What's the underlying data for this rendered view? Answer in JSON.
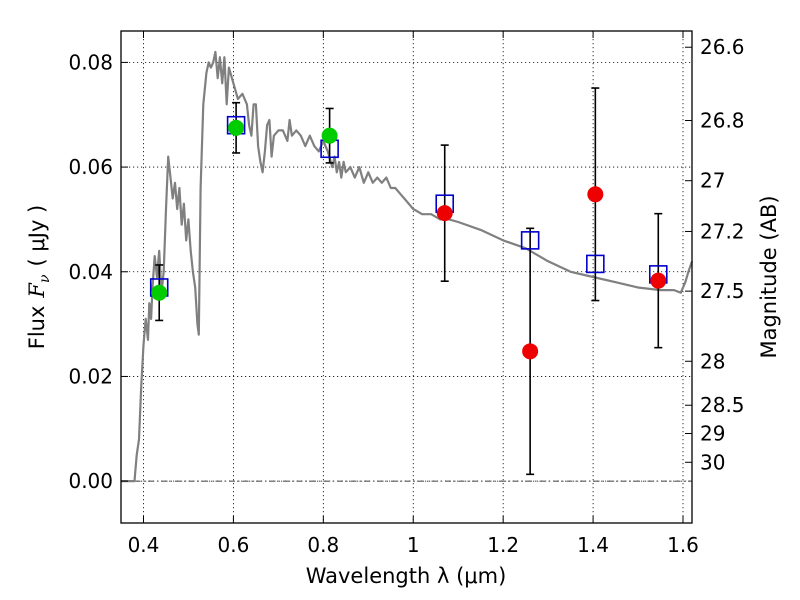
{
  "chart_data": {
    "type": "scatter",
    "xlabel": "Wavelength  λ (μm)",
    "ylabel": "Flux  F_ν  ( μJy )",
    "ylabel_parts": {
      "prefix": "Flux",
      "symbol": "F",
      "subscript": "ν",
      "unit": "( μJy )"
    },
    "y2label": "Magnitude (AB)",
    "xlim": [
      0.35,
      1.62
    ],
    "ylim": [
      -0.008,
      0.086
    ],
    "grid": true,
    "xticks": [
      0.4,
      0.6,
      0.8,
      1.0,
      1.2,
      1.4,
      1.6
    ],
    "xtick_labels": [
      "0.4",
      "0.6",
      "0.8",
      "1",
      "1.2",
      "1.4",
      "1.6"
    ],
    "yticks": [
      0.0,
      0.02,
      0.04,
      0.06,
      0.08
    ],
    "ytick_labels": [
      "0.00",
      "0.02",
      "0.04",
      "0.06",
      "0.08"
    ],
    "mag_ticks": [
      {
        "label": "26.6",
        "flux": 0.0829
      },
      {
        "label": "26.8",
        "flux": 0.0689
      },
      {
        "label": "27",
        "flux": 0.0574
      },
      {
        "label": "27.2",
        "flux": 0.0477
      },
      {
        "label": "27.5",
        "flux": 0.0363
      },
      {
        "label": "28",
        "flux": 0.0229
      },
      {
        "label": "28.5",
        "flux": 0.0145
      },
      {
        "label": "29",
        "flux": 0.0091
      },
      {
        "label": "30",
        "flux": 0.0036
      }
    ],
    "series": [
      {
        "name": "model-spectrum",
        "kind": "line",
        "color": "#808080",
        "points": [
          [
            0.35,
            0.0
          ],
          [
            0.38,
            0.0
          ],
          [
            0.385,
            0.005
          ],
          [
            0.39,
            0.008
          ],
          [
            0.395,
            0.018
          ],
          [
            0.4,
            0.026
          ],
          [
            0.405,
            0.031
          ],
          [
            0.41,
            0.027
          ],
          [
            0.413,
            0.034
          ],
          [
            0.417,
            0.031
          ],
          [
            0.42,
            0.037
          ],
          [
            0.425,
            0.043
          ],
          [
            0.43,
            0.039
          ],
          [
            0.435,
            0.044
          ],
          [
            0.44,
            0.036
          ],
          [
            0.445,
            0.04
          ],
          [
            0.45,
            0.052
          ],
          [
            0.455,
            0.062
          ],
          [
            0.46,
            0.058
          ],
          [
            0.465,
            0.054
          ],
          [
            0.47,
            0.057
          ],
          [
            0.475,
            0.052
          ],
          [
            0.48,
            0.056
          ],
          [
            0.485,
            0.049
          ],
          [
            0.49,
            0.053
          ],
          [
            0.495,
            0.046
          ],
          [
            0.5,
            0.05
          ],
          [
            0.505,
            0.044
          ],
          [
            0.51,
            0.04
          ],
          [
            0.515,
            0.037
          ],
          [
            0.52,
            0.03
          ],
          [
            0.523,
            0.028
          ],
          [
            0.527,
            0.056
          ],
          [
            0.533,
            0.072
          ],
          [
            0.54,
            0.078
          ],
          [
            0.545,
            0.08
          ],
          [
            0.55,
            0.079
          ],
          [
            0.555,
            0.08
          ],
          [
            0.56,
            0.082
          ],
          [
            0.565,
            0.077
          ],
          [
            0.57,
            0.081
          ],
          [
            0.575,
            0.076
          ],
          [
            0.58,
            0.081
          ],
          [
            0.585,
            0.072
          ],
          [
            0.59,
            0.079
          ],
          [
            0.6,
            0.076
          ],
          [
            0.61,
            0.073
          ],
          [
            0.62,
            0.074
          ],
          [
            0.63,
            0.072
          ],
          [
            0.635,
            0.068
          ],
          [
            0.64,
            0.066
          ],
          [
            0.645,
            0.072
          ],
          [
            0.65,
            0.072
          ],
          [
            0.655,
            0.064
          ],
          [
            0.66,
            0.061
          ],
          [
            0.665,
            0.059
          ],
          [
            0.67,
            0.063
          ],
          [
            0.675,
            0.068
          ],
          [
            0.68,
            0.069
          ],
          [
            0.685,
            0.062
          ],
          [
            0.69,
            0.066
          ],
          [
            0.7,
            0.067
          ],
          [
            0.71,
            0.067
          ],
          [
            0.72,
            0.065
          ],
          [
            0.725,
            0.069
          ],
          [
            0.73,
            0.066
          ],
          [
            0.74,
            0.067
          ],
          [
            0.75,
            0.066
          ],
          [
            0.76,
            0.064
          ],
          [
            0.77,
            0.066
          ],
          [
            0.78,
            0.064
          ],
          [
            0.79,
            0.063
          ],
          [
            0.8,
            0.065
          ],
          [
            0.81,
            0.063
          ],
          [
            0.82,
            0.06
          ],
          [
            0.825,
            0.062
          ],
          [
            0.83,
            0.059
          ],
          [
            0.835,
            0.061
          ],
          [
            0.84,
            0.058
          ],
          [
            0.845,
            0.061
          ],
          [
            0.85,
            0.059
          ],
          [
            0.86,
            0.06
          ],
          [
            0.87,
            0.058
          ],
          [
            0.88,
            0.06
          ],
          [
            0.89,
            0.057
          ],
          [
            0.9,
            0.059
          ],
          [
            0.91,
            0.057
          ],
          [
            0.92,
            0.058
          ],
          [
            0.93,
            0.057
          ],
          [
            0.94,
            0.058
          ],
          [
            0.95,
            0.056
          ],
          [
            0.96,
            0.056
          ],
          [
            0.97,
            0.055
          ],
          [
            0.98,
            0.054
          ],
          [
            0.99,
            0.053
          ],
          [
            1.0,
            0.052
          ],
          [
            1.02,
            0.051
          ],
          [
            1.04,
            0.051
          ],
          [
            1.06,
            0.05
          ],
          [
            1.08,
            0.05
          ],
          [
            1.1,
            0.0495
          ],
          [
            1.15,
            0.048
          ],
          [
            1.2,
            0.046
          ],
          [
            1.25,
            0.0445
          ],
          [
            1.3,
            0.042
          ],
          [
            1.35,
            0.04
          ],
          [
            1.4,
            0.039
          ],
          [
            1.45,
            0.038
          ],
          [
            1.5,
            0.037
          ],
          [
            1.55,
            0.0365
          ],
          [
            1.58,
            0.0365
          ],
          [
            1.595,
            0.036
          ],
          [
            1.605,
            0.038
          ],
          [
            1.612,
            0.04
          ],
          [
            1.62,
            0.042
          ]
        ]
      },
      {
        "name": "model-photometry",
        "kind": "open-square",
        "color": "#0000cc",
        "points": [
          [
            0.435,
            0.037
          ],
          [
            0.606,
            0.068
          ],
          [
            0.814,
            0.0635
          ],
          [
            1.07,
            0.053
          ],
          [
            1.26,
            0.046
          ],
          [
            1.405,
            0.0415
          ],
          [
            1.545,
            0.0395
          ]
        ]
      },
      {
        "name": "observed-optical",
        "kind": "point",
        "color": "#00cc00",
        "points": [
          {
            "x": 0.435,
            "y": 0.036,
            "err": 0.0053
          },
          {
            "x": 0.606,
            "y": 0.0675,
            "err": 0.0048
          },
          {
            "x": 0.814,
            "y": 0.066,
            "err": 0.0052
          }
        ]
      },
      {
        "name": "observed-nir",
        "kind": "point",
        "color": "#ee0000",
        "points": [
          {
            "x": 1.07,
            "y": 0.0512,
            "err": 0.013
          },
          {
            "x": 1.26,
            "y": 0.0248,
            "err": 0.0235
          },
          {
            "x": 1.405,
            "y": 0.0548,
            "err": 0.0203
          },
          {
            "x": 1.545,
            "y": 0.0383,
            "err": 0.0128
          }
        ]
      }
    ]
  }
}
